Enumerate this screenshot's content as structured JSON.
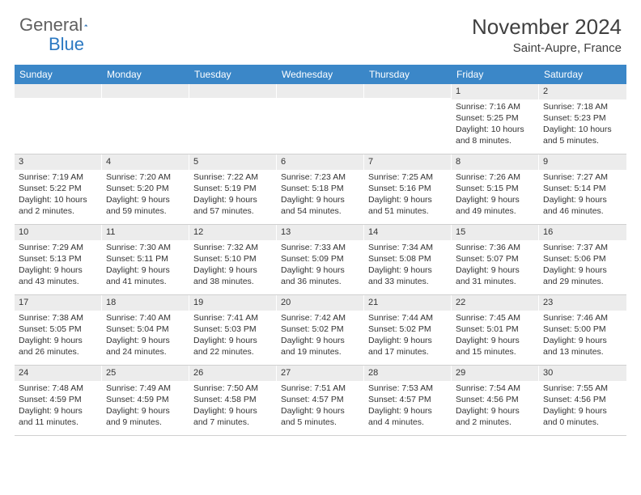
{
  "logo": {
    "text1": "General",
    "text2": "Blue"
  },
  "title": "November 2024",
  "location": "Saint-Aupre, France",
  "colors": {
    "header_bg": "#3b87c8",
    "daynum_bg": "#ececec",
    "text": "#333333",
    "logo_gray": "#606060",
    "logo_blue": "#2b78c2"
  },
  "day_names": [
    "Sunday",
    "Monday",
    "Tuesday",
    "Wednesday",
    "Thursday",
    "Friday",
    "Saturday"
  ],
  "weeks": [
    [
      null,
      null,
      null,
      null,
      null,
      {
        "n": "1",
        "sr": "7:16 AM",
        "ss": "5:25 PM",
        "dl": "10 hours and 8 minutes."
      },
      {
        "n": "2",
        "sr": "7:18 AM",
        "ss": "5:23 PM",
        "dl": "10 hours and 5 minutes."
      }
    ],
    [
      {
        "n": "3",
        "sr": "7:19 AM",
        "ss": "5:22 PM",
        "dl": "10 hours and 2 minutes."
      },
      {
        "n": "4",
        "sr": "7:20 AM",
        "ss": "5:20 PM",
        "dl": "9 hours and 59 minutes."
      },
      {
        "n": "5",
        "sr": "7:22 AM",
        "ss": "5:19 PM",
        "dl": "9 hours and 57 minutes."
      },
      {
        "n": "6",
        "sr": "7:23 AM",
        "ss": "5:18 PM",
        "dl": "9 hours and 54 minutes."
      },
      {
        "n": "7",
        "sr": "7:25 AM",
        "ss": "5:16 PM",
        "dl": "9 hours and 51 minutes."
      },
      {
        "n": "8",
        "sr": "7:26 AM",
        "ss": "5:15 PM",
        "dl": "9 hours and 49 minutes."
      },
      {
        "n": "9",
        "sr": "7:27 AM",
        "ss": "5:14 PM",
        "dl": "9 hours and 46 minutes."
      }
    ],
    [
      {
        "n": "10",
        "sr": "7:29 AM",
        "ss": "5:13 PM",
        "dl": "9 hours and 43 minutes."
      },
      {
        "n": "11",
        "sr": "7:30 AM",
        "ss": "5:11 PM",
        "dl": "9 hours and 41 minutes."
      },
      {
        "n": "12",
        "sr": "7:32 AM",
        "ss": "5:10 PM",
        "dl": "9 hours and 38 minutes."
      },
      {
        "n": "13",
        "sr": "7:33 AM",
        "ss": "5:09 PM",
        "dl": "9 hours and 36 minutes."
      },
      {
        "n": "14",
        "sr": "7:34 AM",
        "ss": "5:08 PM",
        "dl": "9 hours and 33 minutes."
      },
      {
        "n": "15",
        "sr": "7:36 AM",
        "ss": "5:07 PM",
        "dl": "9 hours and 31 minutes."
      },
      {
        "n": "16",
        "sr": "7:37 AM",
        "ss": "5:06 PM",
        "dl": "9 hours and 29 minutes."
      }
    ],
    [
      {
        "n": "17",
        "sr": "7:38 AM",
        "ss": "5:05 PM",
        "dl": "9 hours and 26 minutes."
      },
      {
        "n": "18",
        "sr": "7:40 AM",
        "ss": "5:04 PM",
        "dl": "9 hours and 24 minutes."
      },
      {
        "n": "19",
        "sr": "7:41 AM",
        "ss": "5:03 PM",
        "dl": "9 hours and 22 minutes."
      },
      {
        "n": "20",
        "sr": "7:42 AM",
        "ss": "5:02 PM",
        "dl": "9 hours and 19 minutes."
      },
      {
        "n": "21",
        "sr": "7:44 AM",
        "ss": "5:02 PM",
        "dl": "9 hours and 17 minutes."
      },
      {
        "n": "22",
        "sr": "7:45 AM",
        "ss": "5:01 PM",
        "dl": "9 hours and 15 minutes."
      },
      {
        "n": "23",
        "sr": "7:46 AM",
        "ss": "5:00 PM",
        "dl": "9 hours and 13 minutes."
      }
    ],
    [
      {
        "n": "24",
        "sr": "7:48 AM",
        "ss": "4:59 PM",
        "dl": "9 hours and 11 minutes."
      },
      {
        "n": "25",
        "sr": "7:49 AM",
        "ss": "4:59 PM",
        "dl": "9 hours and 9 minutes."
      },
      {
        "n": "26",
        "sr": "7:50 AM",
        "ss": "4:58 PM",
        "dl": "9 hours and 7 minutes."
      },
      {
        "n": "27",
        "sr": "7:51 AM",
        "ss": "4:57 PM",
        "dl": "9 hours and 5 minutes."
      },
      {
        "n": "28",
        "sr": "7:53 AM",
        "ss": "4:57 PM",
        "dl": "9 hours and 4 minutes."
      },
      {
        "n": "29",
        "sr": "7:54 AM",
        "ss": "4:56 PM",
        "dl": "9 hours and 2 minutes."
      },
      {
        "n": "30",
        "sr": "7:55 AM",
        "ss": "4:56 PM",
        "dl": "9 hours and 0 minutes."
      }
    ]
  ],
  "labels": {
    "sunrise": "Sunrise: ",
    "sunset": "Sunset: ",
    "daylight": "Daylight: "
  }
}
